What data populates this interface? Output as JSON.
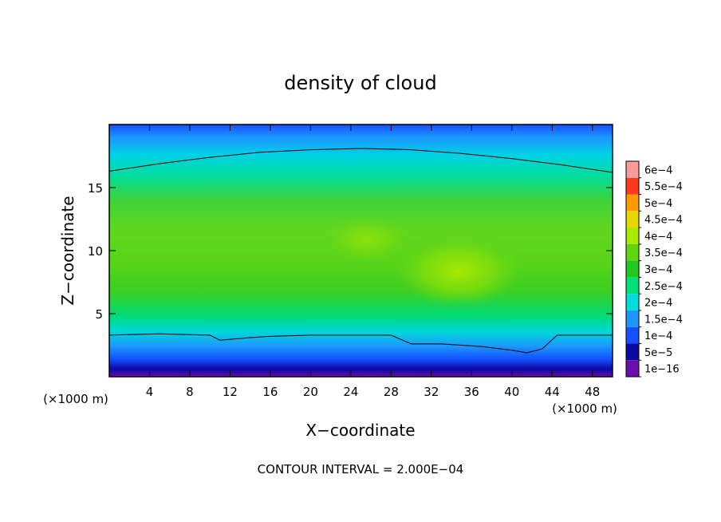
{
  "chart_data": {
    "type": "heatmap",
    "title": "density of cloud",
    "xlabel": "X−coordinate",
    "ylabel": "Z−coordinate",
    "x_unit_note": "(×1000 m)",
    "y_unit_note": "(×1000 m)",
    "xlim": [
      0,
      50
    ],
    "ylim": [
      0,
      20
    ],
    "xticks": [
      4,
      8,
      12,
      16,
      20,
      24,
      28,
      32,
      36,
      40,
      44,
      48
    ],
    "yticks": [
      5,
      10,
      15
    ],
    "footer": "CONTOUR INTERVAL = 2.000E−04",
    "colorbar": {
      "levels": [
        "1e−16",
        "5e−5",
        "1e−4",
        "1.5e−4",
        "2e−4",
        "2.5e−4",
        "3e−4",
        "3.5e−4",
        "4e−4",
        "4.5e−4",
        "5e−4",
        "5.5e−4",
        "6e−4"
      ],
      "colors": [
        "#6a0dad",
        "#0a0aa0",
        "#1450ff",
        "#1e96ff",
        "#00dcdc",
        "#00e07a",
        "#20c820",
        "#5ed412",
        "#a8ea00",
        "#e6d800",
        "#ff9a00",
        "#ff3a1e",
        "#ff9a9a"
      ]
    },
    "contours": [
      {
        "label": "upper contour",
        "x": [
          0,
          5,
          10,
          15,
          20,
          25,
          30,
          35,
          40,
          45,
          50
        ],
        "z": [
          16.3,
          16.9,
          17.4,
          17.8,
          18.0,
          18.1,
          18.0,
          17.7,
          17.3,
          16.8,
          16.2
        ]
      },
      {
        "label": "lower contour",
        "x": [
          0,
          5,
          10,
          11,
          14,
          16,
          20,
          25,
          28,
          30,
          33,
          37,
          40,
          41.5,
          43,
          44.5,
          47,
          50
        ],
        "z": [
          3.3,
          3.4,
          3.3,
          2.9,
          3.1,
          3.2,
          3.3,
          3.3,
          3.3,
          2.6,
          2.6,
          2.4,
          2.1,
          1.9,
          2.2,
          3.3,
          3.3,
          3.3
        ]
      }
    ],
    "peak": {
      "x": 34,
      "z": 8.2,
      "value": "4e−4"
    }
  }
}
